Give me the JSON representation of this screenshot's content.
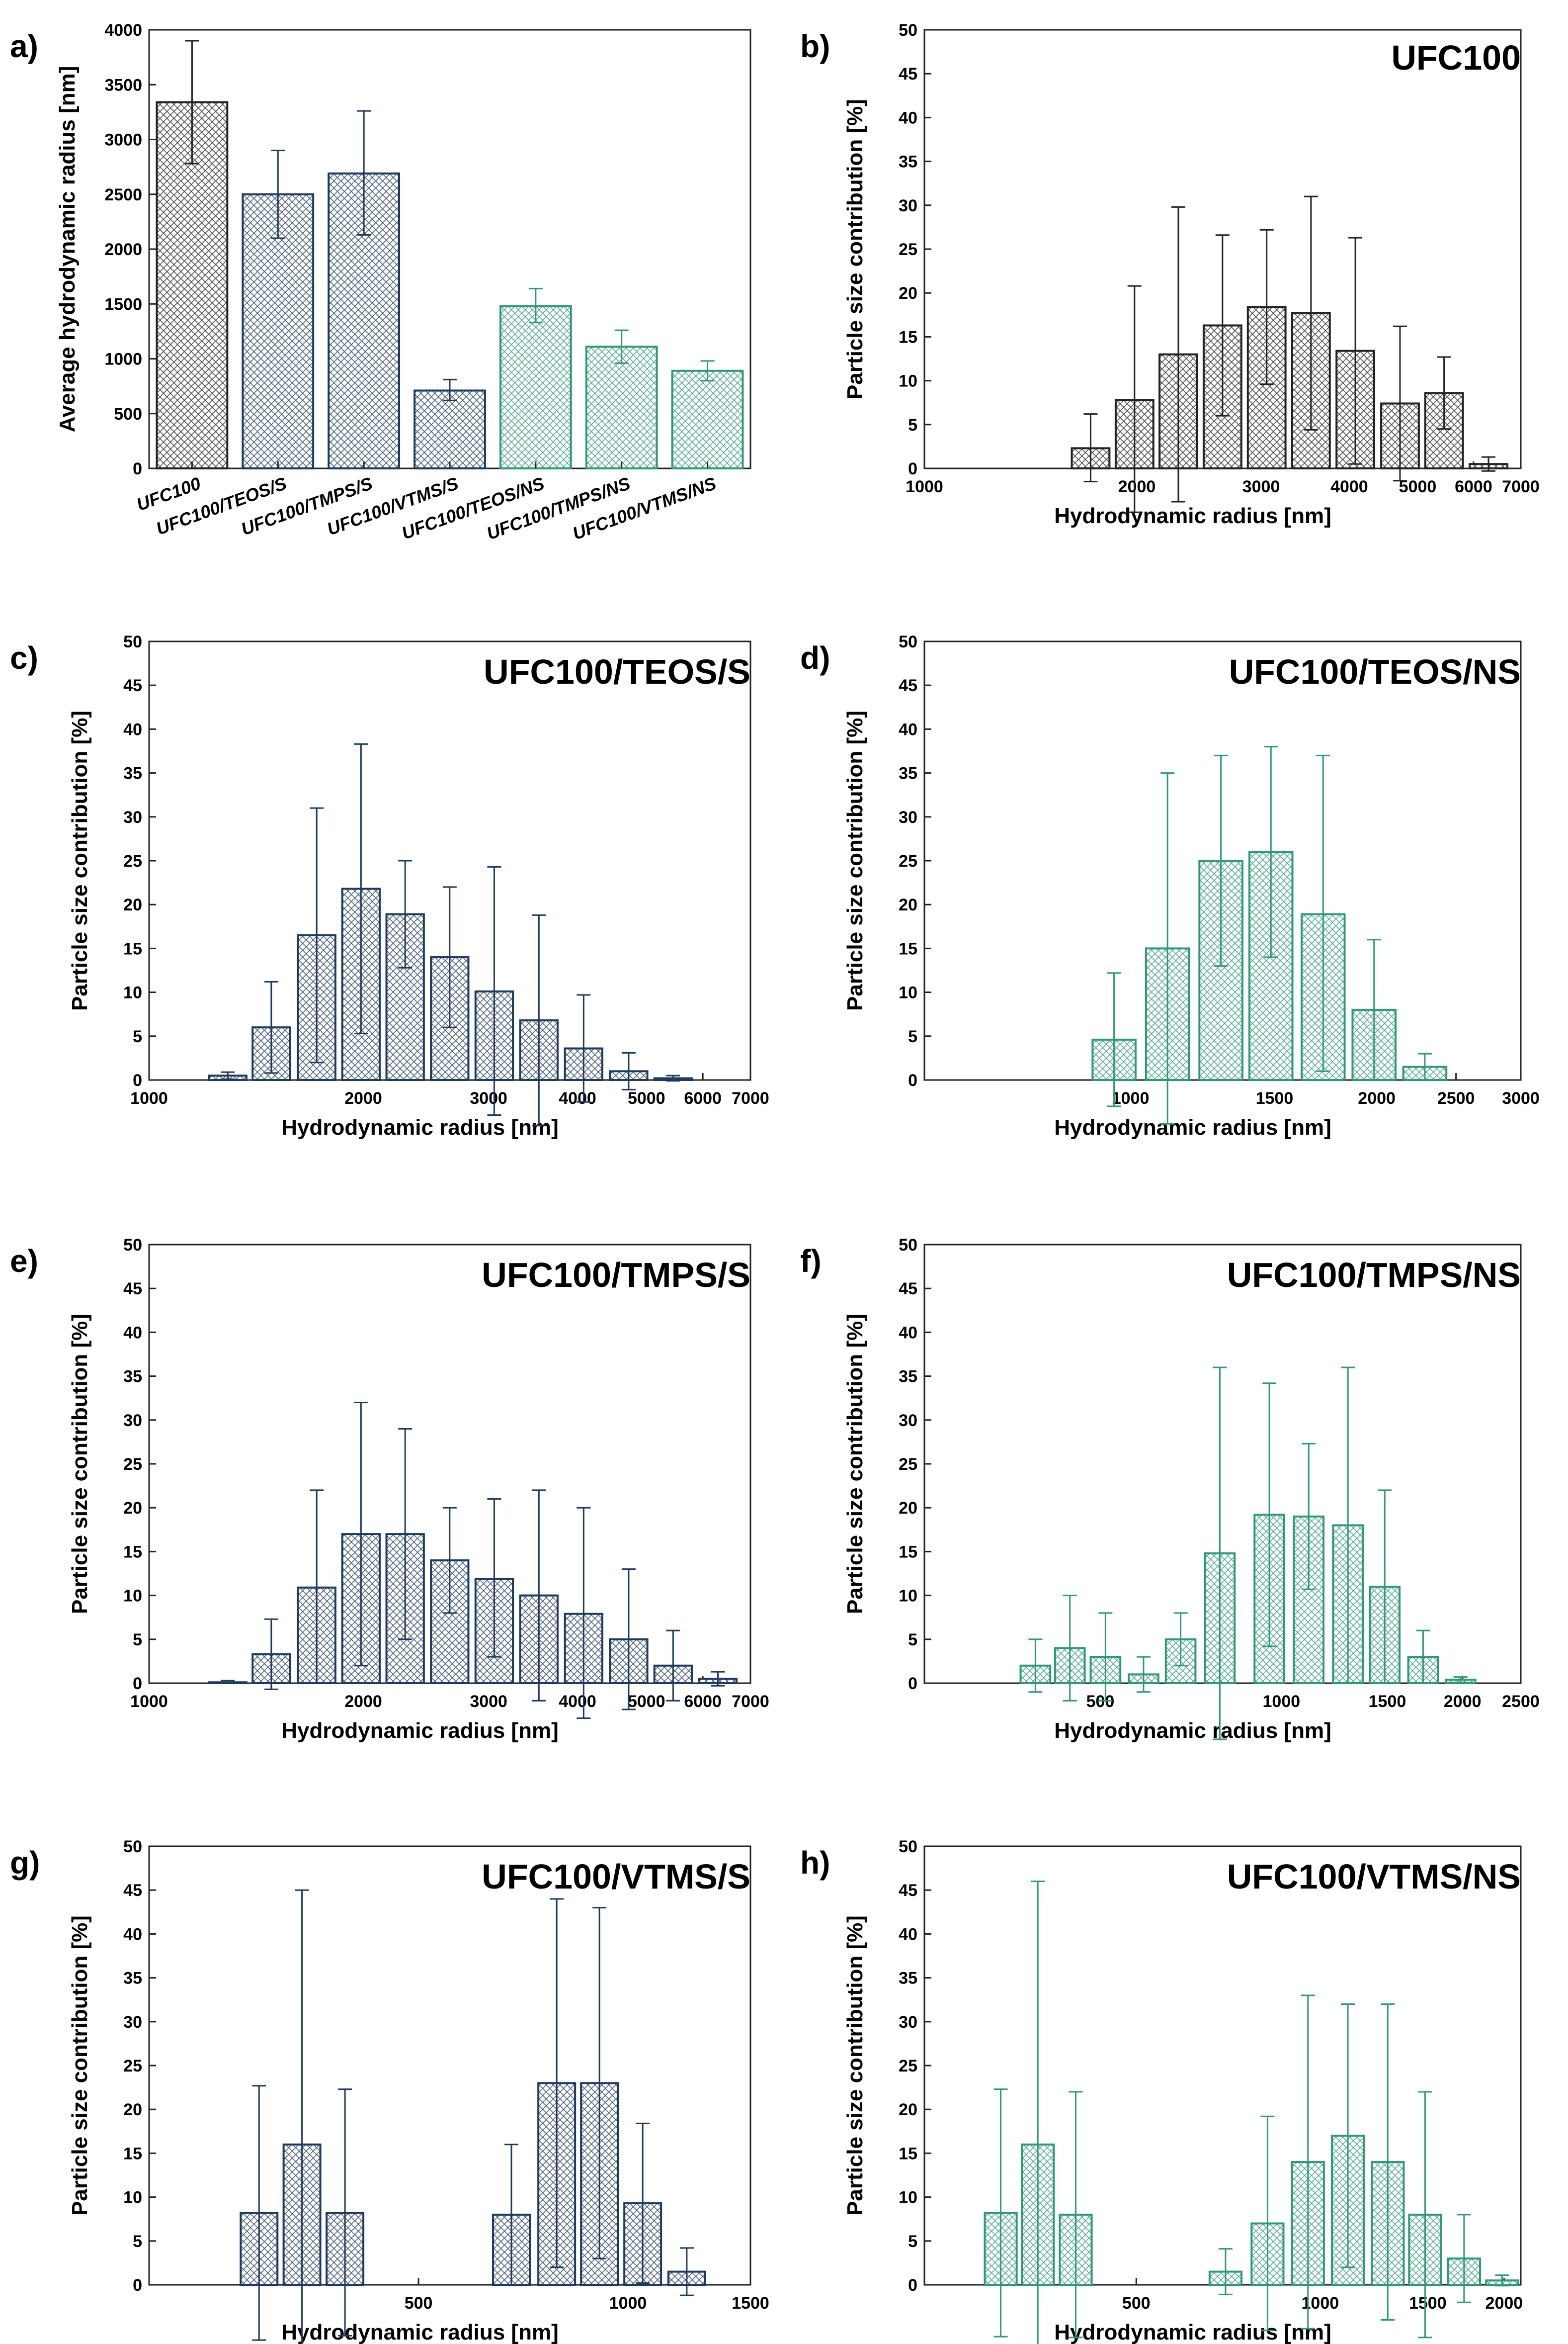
{
  "figure": {
    "colors": {
      "black": "#222222",
      "navy": "#1f3a5f",
      "green": "#2e9a74"
    }
  },
  "chart_data": [
    {
      "id": "a",
      "panel_label": "a)",
      "type": "bar",
      "title": "",
      "xlabel": "",
      "ylabel": "Average hydrodynamic radius [nm]",
      "ylim": [
        0,
        4000
      ],
      "yticks": [
        0,
        500,
        1000,
        1500,
        2000,
        2500,
        3000,
        3500,
        4000
      ],
      "categories": [
        "UFC100",
        "UFC100/TEOS/S",
        "UFC100/TMPS/S",
        "UFC100/VTMS/S",
        "UFC100/TEOS/NS",
        "UFC100/TMPS/NS",
        "UFC100/VTMS/NS"
      ],
      "values": [
        3340,
        2500,
        2690,
        710,
        1480,
        1110,
        890
      ],
      "err_upper": [
        3900,
        2900,
        3260,
        810,
        1640,
        1260,
        980
      ],
      "err_lower": [
        2780,
        2100,
        2130,
        620,
        1330,
        960,
        800
      ],
      "bar_colors": [
        "black",
        "navy",
        "navy",
        "navy",
        "green",
        "green",
        "green"
      ]
    },
    {
      "id": "b",
      "panel_label": "b)",
      "type": "bar",
      "title": "UFC100",
      "color": "black",
      "xlabel": "Hydrodynamic radius [nm]",
      "ylabel": "Particle size contribution [%]",
      "xscale": "log",
      "xlim": [
        1000,
        7000
      ],
      "ylim": [
        0,
        50
      ],
      "yticks": [
        0,
        5,
        10,
        15,
        20,
        25,
        30,
        35,
        40,
        45,
        50
      ],
      "xticks": [
        1000,
        2000,
        3000,
        4000,
        5000,
        6000,
        7000
      ],
      "x": [
        1720,
        1985,
        2290,
        2645,
        3055,
        3530,
        4080,
        4720,
        5450,
        6300
      ],
      "values": [
        2.3,
        7.8,
        13,
        16.3,
        18.4,
        17.7,
        13.4,
        7.4,
        8.6,
        0.5
      ],
      "err_upper": [
        6.2,
        20.8,
        29.8,
        26.6,
        27.2,
        31,
        26.3,
        16.2,
        12.7,
        1.3
      ],
      "err_lower": [
        -1.5,
        -5,
        -3.8,
        6,
        9.6,
        4.4,
        0.5,
        -1.4,
        4.5,
        -0.3
      ]
    },
    {
      "id": "c",
      "panel_label": "c)",
      "type": "bar",
      "title": "UFC100/TEOS/S",
      "color": "navy",
      "xlabel": "Hydrodynamic radius [nm]",
      "ylabel": "Particle size contribution [%]",
      "xscale": "log",
      "xlim": [
        1000,
        7000
      ],
      "ylim": [
        0,
        50
      ],
      "yticks": [
        0,
        5,
        10,
        15,
        20,
        25,
        30,
        35,
        40,
        45,
        50
      ],
      "xticks": [
        1000,
        2000,
        3000,
        4000,
        5000,
        6000,
        7000
      ],
      "x": [
        1290,
        1485,
        1720,
        1985,
        2290,
        2645,
        3055,
        3530,
        4080,
        4720,
        5450
      ],
      "values": [
        0.5,
        6,
        16.5,
        21.8,
        18.9,
        14,
        10.1,
        6.8,
        3.6,
        1,
        0.2
      ],
      "err_upper": [
        0.9,
        11.2,
        31,
        38.3,
        25,
        22,
        24.3,
        18.8,
        9.7,
        3.1,
        0.5
      ],
      "err_lower": [
        0.1,
        0.8,
        2,
        5.3,
        12.8,
        6,
        -4,
        -5.2,
        -2.5,
        -1.1,
        -0.1
      ]
    },
    {
      "id": "d",
      "panel_label": "d)",
      "type": "bar",
      "title": "UFC100/TEOS/NS",
      "color": "green",
      "xlabel": "Hydrodynamic radius [nm]",
      "ylabel": "Particle size contribution [%]",
      "xscale": "log",
      "xlim": [
        560,
        3000
      ],
      "ylim": [
        0,
        50
      ],
      "yticks": [
        0,
        5,
        10,
        15,
        20,
        25,
        30,
        35,
        40,
        45,
        50
      ],
      "xticks": [
        1000,
        1500,
        2000,
        2500,
        3000
      ],
      "x": [
        955,
        1110,
        1290,
        1485,
        1720,
        1985,
        2290
      ],
      "values": [
        4.6,
        15,
        25,
        26,
        18.9,
        8,
        1.5
      ],
      "err_upper": [
        12.2,
        35,
        37,
        38,
        37,
        16,
        3
      ],
      "err_lower": [
        -3,
        -5,
        13,
        14,
        1,
        0,
        0
      ]
    },
    {
      "id": "e",
      "panel_label": "e)",
      "type": "bar",
      "title": "UFC100/TMPS/S",
      "color": "navy",
      "xlabel": "Hydrodynamic radius [nm]",
      "ylabel": "Particle size contribution [%]",
      "xscale": "log",
      "xlim": [
        1000,
        7000
      ],
      "ylim": [
        0,
        50
      ],
      "yticks": [
        0,
        5,
        10,
        15,
        20,
        25,
        30,
        35,
        40,
        45,
        50
      ],
      "xticks": [
        1000,
        2000,
        3000,
        4000,
        5000,
        6000,
        7000
      ],
      "x": [
        1290,
        1485,
        1720,
        1985,
        2290,
        2645,
        3055,
        3530,
        4080,
        4720,
        5450,
        6300
      ],
      "values": [
        0.1,
        3.3,
        10.9,
        17,
        17,
        14,
        11.9,
        10,
        7.9,
        5,
        2,
        0.5
      ],
      "err_upper": [
        0.3,
        7.3,
        22,
        32,
        29,
        20,
        21,
        22,
        20,
        13,
        6,
        1.3
      ],
      "err_lower": [
        0,
        -0.7,
        0,
        2,
        5,
        8,
        3,
        -2,
        -4,
        -3,
        -2,
        -0.3
      ]
    },
    {
      "id": "f",
      "panel_label": "f)",
      "type": "bar",
      "title": "UFC100/TMPS/NS",
      "color": "green",
      "xlabel": "Hydrodynamic radius [nm]",
      "ylabel": "Particle size contribution [%]",
      "xscale": "log",
      "xlim": [
        255,
        2500
      ],
      "ylim": [
        0,
        50
      ],
      "yticks": [
        0,
        5,
        10,
        15,
        20,
        25,
        30,
        35,
        40,
        45,
        50
      ],
      "xticks": [
        500,
        1000,
        1500,
        2000,
        2500
      ],
      "x": [
        390,
        445,
        510,
        590,
        680,
        790,
        955,
        1110,
        1290,
        1485,
        1720,
        1985
      ],
      "values": [
        2,
        4,
        3,
        1,
        5,
        14.8,
        19.2,
        19,
        18,
        11,
        3,
        0.4
      ],
      "err_upper": [
        5,
        10,
        8,
        3,
        8,
        36,
        34.2,
        27.3,
        36,
        22,
        6,
        0.7
      ],
      "err_lower": [
        -1,
        -2,
        -2,
        -1,
        2,
        -6.4,
        4.2,
        10.7,
        0,
        0,
        0,
        0.1
      ]
    },
    {
      "id": "g",
      "panel_label": "g)",
      "type": "bar",
      "title": "UFC100/VTMS/S",
      "color": "navy",
      "xlabel": "Hydrodynamic radius [nm]",
      "ylabel": "Particle size contribution [%]",
      "xscale": "log",
      "xlim": [
        205,
        1500
      ],
      "ylim": [
        0,
        50
      ],
      "yticks": [
        0,
        5,
        10,
        15,
        20,
        25,
        30,
        35,
        40,
        45,
        50
      ],
      "xticks": [
        500,
        1000,
        1500
      ],
      "x": [
        295,
        340,
        392,
        680,
        790,
        910,
        1050,
        1215
      ],
      "values": [
        8.2,
        16,
        8.2,
        8,
        23,
        23,
        9.3,
        1.5
      ],
      "err_upper": [
        22.7,
        45,
        22.3,
        16,
        44,
        43,
        18.4,
        4.2
      ],
      "err_lower": [
        -6.3,
        -13,
        -5.8,
        0,
        2,
        3,
        0.2,
        -1.2
      ]
    },
    {
      "id": "h",
      "panel_label": "h)",
      "type": "bar",
      "title": "UFC100/VTMS/NS",
      "color": "green",
      "xlabel": "Hydrodynamic radius [nm]",
      "ylabel": "Particle size contribution [%]",
      "xscale": "log",
      "xlim": [
        225,
        2130
      ],
      "ylim": [
        0,
        50
      ],
      "yticks": [
        0,
        5,
        10,
        15,
        20,
        25,
        30,
        35,
        40,
        45,
        50
      ],
      "xticks": [
        500,
        1000,
        1500,
        2000
      ],
      "x": [
        300,
        345,
        398,
        700,
        820,
        955,
        1110,
        1290,
        1485,
        1720,
        1985
      ],
      "values": [
        8.2,
        16,
        8,
        1.5,
        7,
        14,
        17,
        14,
        8,
        3,
        0.5
      ],
      "err_upper": [
        22.3,
        46,
        22,
        4.1,
        19.2,
        33,
        32,
        32,
        22,
        8,
        1.1
      ],
      "err_lower": [
        -5.9,
        -14,
        -6,
        -1.1,
        -5.2,
        -5,
        2,
        -4,
        -6,
        -2,
        -0.1
      ]
    }
  ]
}
